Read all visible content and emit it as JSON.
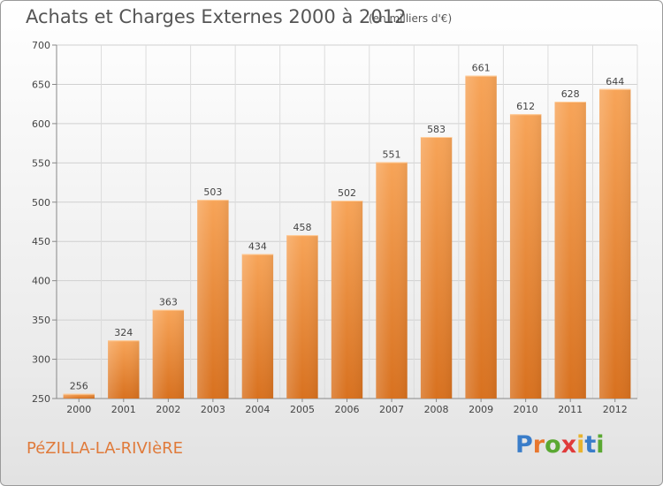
{
  "header": {
    "title": "Achats et Charges Externes 2000 à 2012",
    "subtitle": "(en milliers d'€)"
  },
  "footer": {
    "place": "PéZILLA-LA-RIVIèRE",
    "logo_letters": [
      "P",
      "r",
      "o",
      "x",
      "i",
      "t",
      "i"
    ],
    "logo_colors": [
      "#3a7dc9",
      "#e8772e",
      "#5aa832",
      "#e03a3a",
      "#e8b32e",
      "#3a7dc9",
      "#5aa832"
    ]
  },
  "chart_data": {
    "type": "bar",
    "categories": [
      "2000",
      "2001",
      "2002",
      "2003",
      "2004",
      "2005",
      "2006",
      "2007",
      "2008",
      "2009",
      "2010",
      "2011",
      "2012"
    ],
    "values": [
      256,
      324,
      363,
      503,
      434,
      458,
      502,
      551,
      583,
      661,
      612,
      628,
      644
    ],
    "ylim": [
      250,
      700
    ],
    "yticks": [
      250,
      300,
      350,
      400,
      450,
      500,
      550,
      600,
      650,
      700
    ],
    "bar_color": "#f0923e",
    "grid": true,
    "legend": "none"
  }
}
